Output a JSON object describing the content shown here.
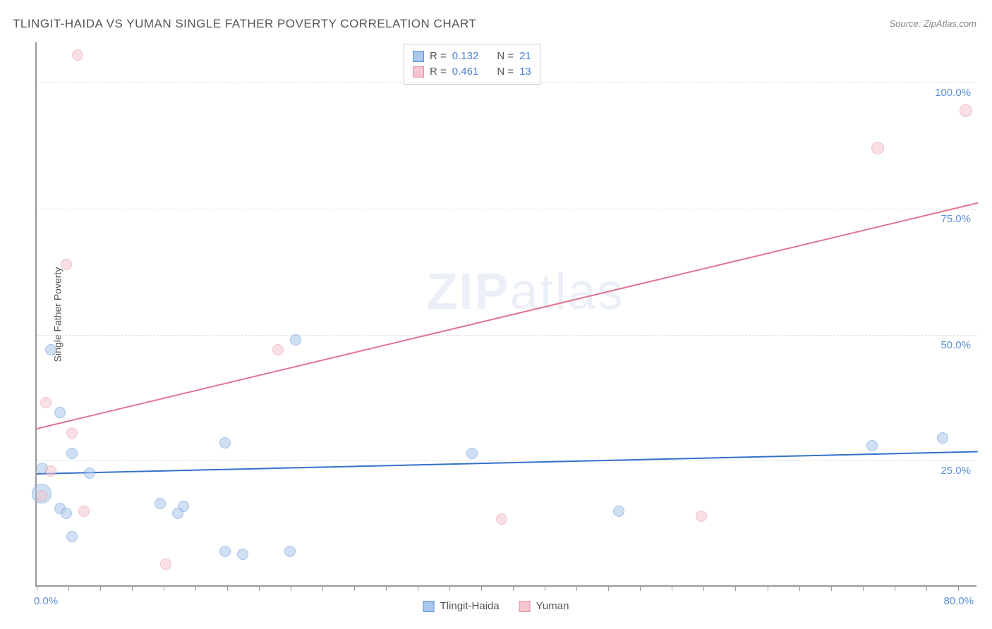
{
  "title": "TLINGIT-HAIDA VS YUMAN SINGLE FATHER POVERTY CORRELATION CHART",
  "source": "Source: ZipAtlas.com",
  "y_axis_label": "Single Father Poverty",
  "watermark": "ZIPatlas",
  "chart": {
    "type": "scatter",
    "xlim": [
      0,
      80
    ],
    "ylim": [
      0,
      108
    ],
    "background_color": "#ffffff",
    "grid_color": "#dddddd",
    "grid_dash": true,
    "axis_color": "#999999",
    "x_ticks_minor_step": 2.7,
    "y_gridlines": [
      0,
      25,
      50,
      75,
      100
    ],
    "x_tick_labels": [
      {
        "val": 0,
        "text": "0.0%"
      },
      {
        "val": 80,
        "text": "80.0%"
      }
    ],
    "y_tick_labels": [
      {
        "val": 25,
        "text": "25.0%"
      },
      {
        "val": 50,
        "text": "50.0%"
      },
      {
        "val": 75,
        "text": "75.0%"
      },
      {
        "val": 100,
        "text": "100.0%"
      }
    ],
    "label_color": "#5b8fd6",
    "label_fontsize": 15
  },
  "series": [
    {
      "name": "Tlingit-Haida",
      "fill_color": "#a9c8ec",
      "border_color": "#5b8fd6",
      "fill_opacity": 0.55,
      "trend": {
        "slope_intercept": [
          0.055,
          22.5
        ],
        "color": "#3571c9",
        "width": 2
      },
      "points": [
        {
          "x": 1.2,
          "y": 47,
          "r": 8
        },
        {
          "x": 2.0,
          "y": 34.5,
          "r": 8
        },
        {
          "x": 3.0,
          "y": 26.5,
          "r": 8
        },
        {
          "x": 0.5,
          "y": 23.5,
          "r": 8
        },
        {
          "x": 4.5,
          "y": 22.5,
          "r": 8
        },
        {
          "x": 0.4,
          "y": 18.5,
          "r": 14
        },
        {
          "x": 2.0,
          "y": 15.5,
          "r": 8
        },
        {
          "x": 2.5,
          "y": 14.5,
          "r": 8
        },
        {
          "x": 10.5,
          "y": 16.5,
          "r": 8
        },
        {
          "x": 12.5,
          "y": 16.0,
          "r": 8
        },
        {
          "x": 12.0,
          "y": 14.5,
          "r": 8
        },
        {
          "x": 3.0,
          "y": 10.0,
          "r": 8
        },
        {
          "x": 16.0,
          "y": 28.5,
          "r": 8
        },
        {
          "x": 16.0,
          "y": 7.0,
          "r": 8
        },
        {
          "x": 17.5,
          "y": 6.5,
          "r": 8
        },
        {
          "x": 21.5,
          "y": 7.0,
          "r": 8
        },
        {
          "x": 22.0,
          "y": 49.0,
          "r": 8
        },
        {
          "x": 37.0,
          "y": 26.5,
          "r": 8
        },
        {
          "x": 49.5,
          "y": 15.0,
          "r": 8
        },
        {
          "x": 71.0,
          "y": 28.0,
          "r": 8
        },
        {
          "x": 77.0,
          "y": 29.5,
          "r": 8
        }
      ]
    },
    {
      "name": "Yuman",
      "fill_color": "#f6c6d0",
      "border_color": "#e68fa3",
      "fill_opacity": 0.55,
      "trend": {
        "slope_intercept": [
          0.56,
          31.5
        ],
        "color": "#e3748f",
        "width": 2
      },
      "points": [
        {
          "x": 3.5,
          "y": 105.5,
          "r": 8
        },
        {
          "x": 2.5,
          "y": 64.0,
          "r": 8
        },
        {
          "x": 0.8,
          "y": 36.5,
          "r": 8
        },
        {
          "x": 3.0,
          "y": 30.5,
          "r": 8
        },
        {
          "x": 1.2,
          "y": 23.0,
          "r": 8
        },
        {
          "x": 0.4,
          "y": 18.0,
          "r": 8
        },
        {
          "x": 4.0,
          "y": 15.0,
          "r": 8
        },
        {
          "x": 11.0,
          "y": 4.5,
          "r": 8
        },
        {
          "x": 20.5,
          "y": 47.0,
          "r": 8
        },
        {
          "x": 39.5,
          "y": 13.5,
          "r": 8
        },
        {
          "x": 56.5,
          "y": 14.0,
          "r": 8
        },
        {
          "x": 71.5,
          "y": 87.0,
          "r": 9
        },
        {
          "x": 79.0,
          "y": 94.5,
          "r": 9
        }
      ]
    }
  ],
  "stats_legend": {
    "rows": [
      {
        "swatch_fill": "#a9c8ec",
        "swatch_border": "#5b8fd6",
        "r_label": "R =",
        "r_val": "0.132",
        "n_label": "N =",
        "n_val": "21"
      },
      {
        "swatch_fill": "#f6c6d0",
        "swatch_border": "#e68fa3",
        "r_label": "R =",
        "r_val": "0.461",
        "n_label": "N =",
        "n_val": "13"
      }
    ]
  },
  "bottom_legend": [
    {
      "swatch_fill": "#a9c8ec",
      "swatch_border": "#5b8fd6",
      "label": "Tlingit-Haida"
    },
    {
      "swatch_fill": "#f6c6d0",
      "swatch_border": "#e68fa3",
      "label": "Yuman"
    }
  ]
}
